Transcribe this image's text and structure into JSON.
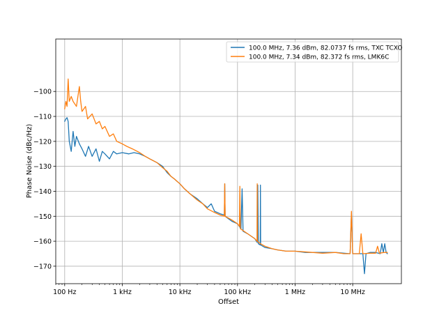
{
  "chart_data": {
    "type": "line",
    "title": "",
    "xlabel": "Offset",
    "ylabel": "Phase Noise (dBc/Hz)",
    "x_scale": "log",
    "x_unit": "Hz",
    "xlim": [
      70,
      70000000
    ],
    "ylim": [
      -177,
      -79
    ],
    "grid": true,
    "legend_position": "top-right",
    "x_ticks": [
      {
        "value": 100,
        "label": "100 Hz"
      },
      {
        "value": 1000,
        "label": "1 kHz"
      },
      {
        "value": 10000,
        "label": "10 kHz"
      },
      {
        "value": 100000,
        "label": "100 kHz"
      },
      {
        "value": 1000000,
        "label": "1 MHz"
      },
      {
        "value": 10000000,
        "label": "10 MHz"
      }
    ],
    "y_ticks": [
      {
        "value": -100,
        "label": "−100"
      },
      {
        "value": -110,
        "label": "−110"
      },
      {
        "value": -120,
        "label": "−120"
      },
      {
        "value": -130,
        "label": "−130"
      },
      {
        "value": -140,
        "label": "−140"
      },
      {
        "value": -150,
        "label": "−150"
      },
      {
        "value": -160,
        "label": "−160"
      },
      {
        "value": -170,
        "label": "−170"
      }
    ],
    "series": [
      {
        "name": "100.0 MHz, 7.36 dBm, 82.0737 fs rms, TXC TCXO",
        "color": "#1f77b4",
        "points": [
          [
            100,
            -112
          ],
          [
            105,
            -111
          ],
          [
            110,
            -110.5
          ],
          [
            115,
            -112
          ],
          [
            120,
            -120
          ],
          [
            130,
            -124
          ],
          [
            140,
            -116
          ],
          [
            150,
            -122
          ],
          [
            160,
            -118
          ],
          [
            180,
            -121
          ],
          [
            200,
            -123
          ],
          [
            230,
            -126
          ],
          [
            260,
            -122
          ],
          [
            300,
            -126
          ],
          [
            350,
            -123
          ],
          [
            400,
            -128
          ],
          [
            450,
            -124
          ],
          [
            500,
            -125
          ],
          [
            600,
            -127
          ],
          [
            700,
            -124
          ],
          [
            800,
            -125
          ],
          [
            1000,
            -124.5
          ],
          [
            1300,
            -125
          ],
          [
            1600,
            -124.5
          ],
          [
            2000,
            -125
          ],
          [
            2500,
            -126
          ],
          [
            3000,
            -127
          ],
          [
            4000,
            -128.5
          ],
          [
            5000,
            -130
          ],
          [
            6000,
            -132.5
          ],
          [
            7000,
            -134
          ],
          [
            8000,
            -135
          ],
          [
            10000,
            -137
          ],
          [
            12000,
            -139
          ],
          [
            15000,
            -141
          ],
          [
            20000,
            -143
          ],
          [
            25000,
            -145
          ],
          [
            30000,
            -146.5
          ],
          [
            35000,
            -145
          ],
          [
            40000,
            -148
          ],
          [
            50000,
            -149
          ],
          [
            59000,
            -149.5
          ],
          [
            60000,
            -137
          ],
          [
            61000,
            -150
          ],
          [
            80000,
            -152
          ],
          [
            100000,
            -153
          ],
          [
            115000,
            -155
          ],
          [
            120000,
            -139
          ],
          [
            125000,
            -156
          ],
          [
            150000,
            -157
          ],
          [
            200000,
            -159
          ],
          [
            220000,
            -160.5
          ],
          [
            225000,
            -137.5
          ],
          [
            230000,
            -161
          ],
          [
            248000,
            -161.5
          ],
          [
            250000,
            -137.5
          ],
          [
            252000,
            -161.5
          ],
          [
            300000,
            -162.5
          ],
          [
            400000,
            -163
          ],
          [
            500000,
            -163.5
          ],
          [
            700000,
            -164
          ],
          [
            1000000,
            -164
          ],
          [
            1500000,
            -164.5
          ],
          [
            2000000,
            -164.5
          ],
          [
            3000000,
            -164.5
          ],
          [
            5000000,
            -164.5
          ],
          [
            7000000,
            -164.8
          ],
          [
            9000000,
            -165
          ],
          [
            9500000,
            -149
          ],
          [
            10000000,
            -165
          ],
          [
            13000000,
            -165
          ],
          [
            15000000,
            -165
          ],
          [
            16000000,
            -173
          ],
          [
            17000000,
            -165
          ],
          [
            20000000,
            -164.5
          ],
          [
            25000000,
            -164.5
          ],
          [
            30000000,
            -165
          ],
          [
            32000000,
            -161
          ],
          [
            34000000,
            -164.5
          ],
          [
            36000000,
            -161
          ],
          [
            38000000,
            -164.5
          ],
          [
            40000000,
            -165
          ]
        ]
      },
      {
        "name": "100.0 MHz, 7.34 dBm, 82.372 fs rms, LMK6C",
        "color": "#ff7f0e",
        "points": [
          [
            100,
            -107
          ],
          [
            105,
            -104
          ],
          [
            110,
            -106
          ],
          [
            115,
            -95
          ],
          [
            120,
            -104
          ],
          [
            130,
            -102
          ],
          [
            140,
            -104
          ],
          [
            160,
            -106
          ],
          [
            180,
            -98
          ],
          [
            190,
            -104
          ],
          [
            200,
            -108
          ],
          [
            230,
            -106
          ],
          [
            250,
            -111
          ],
          [
            300,
            -109
          ],
          [
            350,
            -113
          ],
          [
            400,
            -112
          ],
          [
            450,
            -115
          ],
          [
            500,
            -114
          ],
          [
            600,
            -118
          ],
          [
            700,
            -117
          ],
          [
            800,
            -120
          ],
          [
            1000,
            -121
          ],
          [
            1200,
            -122
          ],
          [
            1500,
            -123
          ],
          [
            2000,
            -124.5
          ],
          [
            2500,
            -126
          ],
          [
            3000,
            -127
          ],
          [
            4000,
            -128.5
          ],
          [
            5000,
            -130.5
          ],
          [
            6000,
            -132
          ],
          [
            7000,
            -134
          ],
          [
            8000,
            -135
          ],
          [
            10000,
            -137
          ],
          [
            12000,
            -139
          ],
          [
            15000,
            -141
          ],
          [
            20000,
            -143.5
          ],
          [
            25000,
            -145
          ],
          [
            30000,
            -147
          ],
          [
            40000,
            -148.5
          ],
          [
            50000,
            -149.5
          ],
          [
            59000,
            -150
          ],
          [
            60000,
            -137
          ],
          [
            61000,
            -150
          ],
          [
            80000,
            -151.5
          ],
          [
            100000,
            -153
          ],
          [
            108000,
            -154
          ],
          [
            110000,
            -138
          ],
          [
            112000,
            -155
          ],
          [
            150000,
            -157
          ],
          [
            200000,
            -159
          ],
          [
            218000,
            -160
          ],
          [
            220000,
            -137
          ],
          [
            222000,
            -160
          ],
          [
            250000,
            -161
          ],
          [
            300000,
            -162
          ],
          [
            400000,
            -163
          ],
          [
            500000,
            -163.5
          ],
          [
            700000,
            -164
          ],
          [
            1000000,
            -164
          ],
          [
            2000000,
            -164.5
          ],
          [
            3000000,
            -164.8
          ],
          [
            5000000,
            -164.5
          ],
          [
            7000000,
            -165
          ],
          [
            9000000,
            -165
          ],
          [
            9500000,
            -148
          ],
          [
            10000000,
            -165
          ],
          [
            13000000,
            -165
          ],
          [
            14000000,
            -157
          ],
          [
            15000000,
            -165
          ],
          [
            20000000,
            -164.8
          ],
          [
            25000000,
            -164.8
          ],
          [
            27000000,
            -162
          ],
          [
            29000000,
            -164.8
          ],
          [
            35000000,
            -164.5
          ],
          [
            40000000,
            -164.5
          ]
        ]
      }
    ]
  }
}
